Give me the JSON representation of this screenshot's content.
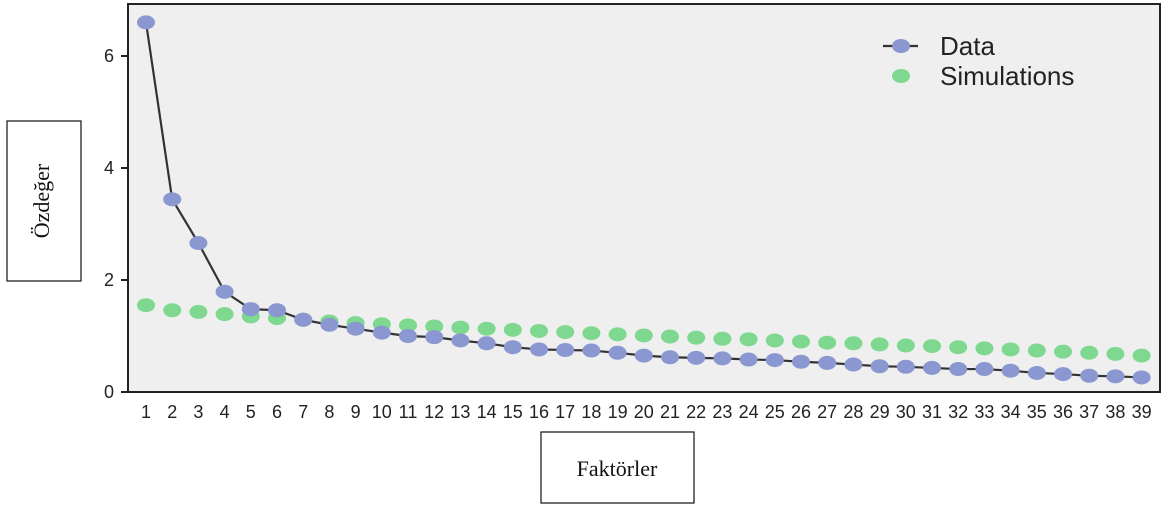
{
  "chart_data": {
    "type": "line",
    "xlabel": "Faktörler",
    "ylabel": "Özdeğer",
    "x": [
      1,
      2,
      3,
      4,
      5,
      6,
      7,
      8,
      9,
      10,
      11,
      12,
      13,
      14,
      15,
      16,
      17,
      18,
      19,
      20,
      21,
      22,
      23,
      24,
      25,
      26,
      27,
      28,
      29,
      30,
      31,
      32,
      33,
      34,
      35,
      36,
      37,
      38,
      39
    ],
    "x_tick_labels": [
      "1",
      "2",
      "3",
      "4",
      "5",
      "6",
      "7",
      "8",
      "9",
      "10",
      "11",
      "12",
      "13",
      "14",
      "15",
      "16",
      "17",
      "18",
      "19",
      "20",
      "21",
      "22",
      "23",
      "24",
      "25",
      "26",
      "27",
      "28",
      "29",
      "30",
      "31",
      "32",
      "33",
      "34",
      "35",
      "36",
      "37",
      "38",
      "39"
    ],
    "y_ticks": [
      0,
      2,
      4,
      6
    ],
    "y_tick_labels": [
      "0",
      "2",
      "4",
      "6"
    ],
    "ylim": [
      0,
      6.9
    ],
    "grid": false,
    "legend_position": "top-right",
    "background_color": "#efefef",
    "series": [
      {
        "name": "Data",
        "color": "#8a97d0",
        "line": true,
        "values": [
          6.6,
          3.44,
          2.66,
          1.79,
          1.48,
          1.46,
          1.29,
          1.2,
          1.13,
          1.06,
          1.0,
          0.98,
          0.92,
          0.87,
          0.8,
          0.76,
          0.75,
          0.74,
          0.7,
          0.65,
          0.62,
          0.61,
          0.6,
          0.58,
          0.57,
          0.54,
          0.52,
          0.49,
          0.46,
          0.45,
          0.43,
          0.41,
          0.41,
          0.38,
          0.34,
          0.32,
          0.29,
          0.28,
          0.26
        ]
      },
      {
        "name": "Simulations",
        "color": "#7fd88f",
        "line": false,
        "values": [
          1.55,
          1.46,
          1.43,
          1.39,
          1.35,
          1.32,
          1.29,
          1.26,
          1.23,
          1.21,
          1.19,
          1.17,
          1.15,
          1.13,
          1.11,
          1.09,
          1.07,
          1.05,
          1.03,
          1.01,
          0.99,
          0.97,
          0.95,
          0.94,
          0.92,
          0.9,
          0.88,
          0.87,
          0.85,
          0.83,
          0.82,
          0.8,
          0.78,
          0.76,
          0.74,
          0.72,
          0.7,
          0.68,
          0.65
        ]
      }
    ]
  }
}
